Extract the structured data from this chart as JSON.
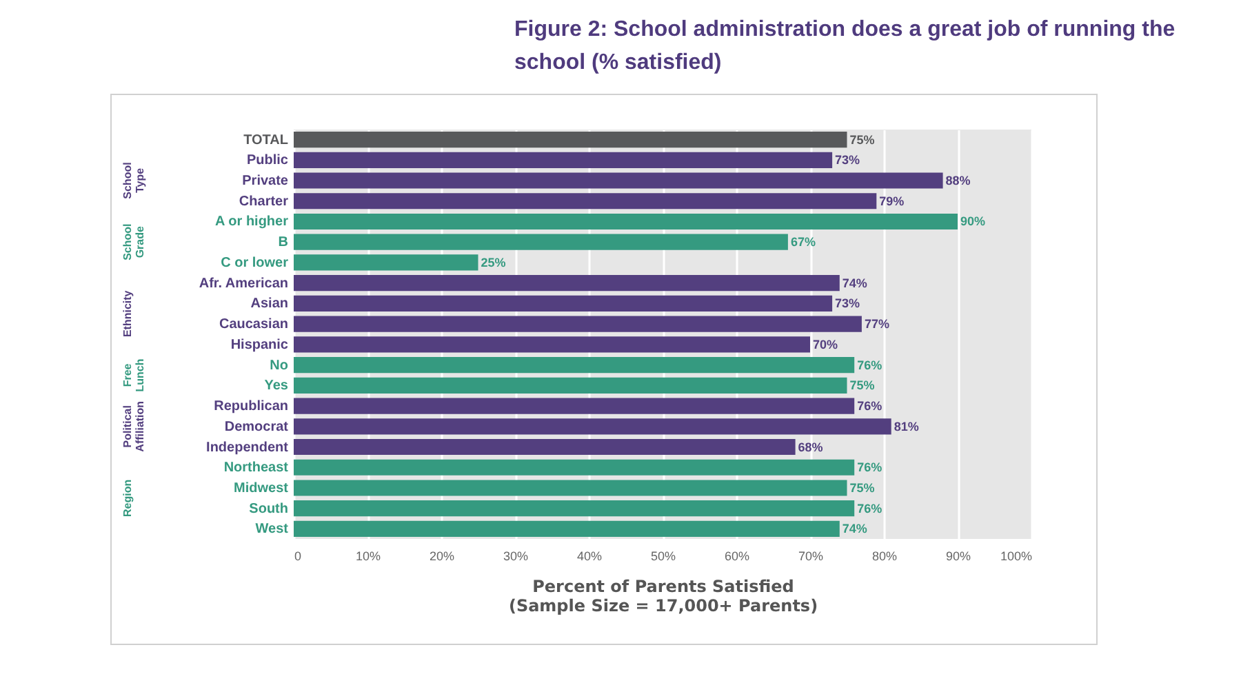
{
  "chart_data": {
    "type": "bar",
    "orientation": "horizontal",
    "title": "Figure 2: School administration does a great job of running the school (% satisfied)",
    "xlabel": "Percent of Parents Satisfied\n(Sample Size = 17,000+ Parents)",
    "categories": [
      "TOTAL",
      "Public",
      "Private",
      "Charter",
      "A or higher",
      "B",
      "C or lower",
      "Afr. American",
      "Asian",
      "Caucasian",
      "Hispanic",
      "No",
      "Yes",
      "Republican",
      "Democrat",
      "Independent",
      "Northeast",
      "Midwest",
      "South",
      "West"
    ],
    "values": [
      75,
      73,
      88,
      79,
      90,
      67,
      25,
      74,
      73,
      77,
      70,
      76,
      75,
      76,
      81,
      68,
      76,
      75,
      76,
      74
    ],
    "value_labels": [
      "75%",
      "73%",
      "88%",
      "79%",
      "90%",
      "67%",
      "25%",
      "74%",
      "73%",
      "77%",
      "70%",
      "76%",
      "75%",
      "76%",
      "81%",
      "68%",
      "76%",
      "75%",
      "76%",
      "74%"
    ],
    "colors": [
      "#58595b",
      "#533f7f",
      "#533f7f",
      "#533f7f",
      "#359a80",
      "#359a80",
      "#359a80",
      "#533f7f",
      "#533f7f",
      "#533f7f",
      "#533f7f",
      "#359a80",
      "#359a80",
      "#533f7f",
      "#533f7f",
      "#533f7f",
      "#359a80",
      "#359a80",
      "#359a80",
      "#359a80"
    ],
    "annotations": [
      "School Type",
      "School Grade",
      "Ethnicity",
      "Free Lunch",
      "Political Affiliation",
      "Region"
    ],
    "xlim": [
      0,
      100
    ],
    "xticks": [
      0,
      {
        "value": 10,
        "label": "10%"
      },
      {
        "value": 20,
        "label": "20%"
      },
      {
        "value": 30,
        "label": "30%"
      },
      {
        "value": 40,
        "label": "40%"
      },
      {
        "value": 50,
        "label": "50%"
      },
      {
        "value": 60,
        "label": "60%"
      },
      {
        "value": 70,
        "label": "70%"
      },
      {
        "value": 80,
        "label": "80%"
      },
      {
        "value": 90,
        "label": "90%"
      },
      {
        "value": 100,
        "label": "100%"
      }
    ],
    "grid": "x"
  }
}
